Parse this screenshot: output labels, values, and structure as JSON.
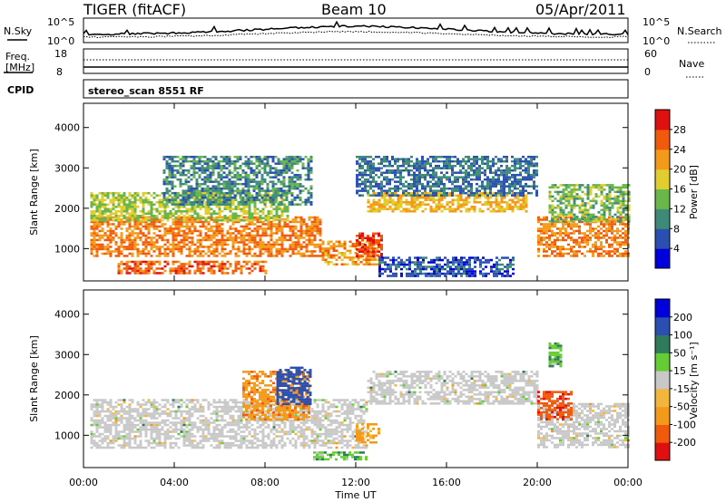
{
  "header": {
    "title": "TIGER (fitACF)",
    "beam": "Beam 10",
    "date": "05/Apr/2011"
  },
  "panels": {
    "nsky_label": "N.Sky",
    "nsky_ticks": [
      "10^5",
      "10^0"
    ],
    "nsearch_label": "N.Search",
    "nsearch_ticks": [
      "10^5",
      "10^0"
    ],
    "freq_label_line1": "Freq.",
    "freq_label_line2": "[MHz]",
    "freq_ticks": [
      "18",
      "8"
    ],
    "nave_label": "Nave",
    "nave_ticks": [
      "60",
      "0"
    ],
    "cpid_label": "CPID",
    "cpid_text": "stereo_scan 8551 RF"
  },
  "chart_data": [
    {
      "type": "heatmap",
      "name": "power",
      "xlabel": "",
      "ylabel": "Slant Range [km]",
      "xlim": [
        "00:00",
        "24:00"
      ],
      "ylim": [
        200,
        4600
      ],
      "y_ticks": [
        1000,
        2000,
        3000,
        4000
      ],
      "colorbar": {
        "label": "Power [dB]",
        "ticks": [
          4,
          8,
          12,
          16,
          20,
          24,
          28
        ],
        "colors": [
          "#0000dd",
          "#2a4fb0",
          "#3e8a78",
          "#69b64a",
          "#e2cd2e",
          "#f39a1a",
          "#f05a0a",
          "#e01010"
        ]
      },
      "regions": [
        {
          "t0": 0.3,
          "t1": 10.5,
          "r0": 800,
          "r1": 1800,
          "level": 24
        },
        {
          "t0": 0.3,
          "t1": 9.0,
          "r0": 1700,
          "r1": 2400,
          "level": 16
        },
        {
          "t0": 3.5,
          "t1": 10.0,
          "r0": 2100,
          "r1": 3300,
          "level": 10
        },
        {
          "t0": 1.5,
          "t1": 8.0,
          "r0": 400,
          "r1": 700,
          "level": 26
        },
        {
          "t0": 10.5,
          "t1": 13.0,
          "r0": 600,
          "r1": 1200,
          "level": 22
        },
        {
          "t0": 12.0,
          "t1": 13.2,
          "r0": 800,
          "r1": 1400,
          "level": 28
        },
        {
          "t0": 12.5,
          "t1": 19.5,
          "r0": 1900,
          "r1": 2400,
          "level": 20
        },
        {
          "t0": 12.0,
          "t1": 20.0,
          "r0": 2300,
          "r1": 3300,
          "level": 8
        },
        {
          "t0": 13.0,
          "t1": 19.0,
          "r0": 300,
          "r1": 800,
          "level": 6
        },
        {
          "t0": 20.0,
          "t1": 24.0,
          "r0": 800,
          "r1": 1800,
          "level": 24
        },
        {
          "t0": 20.5,
          "t1": 24.0,
          "r0": 1700,
          "r1": 2600,
          "level": 14
        }
      ]
    },
    {
      "type": "heatmap",
      "name": "velocity",
      "xlabel": "Time UT",
      "ylabel": "Slant Range [km]",
      "x_ticks": [
        "00:00",
        "04:00",
        "08:00",
        "12:00",
        "16:00",
        "20:00",
        "00:00"
      ],
      "xlim": [
        "00:00",
        "24:00"
      ],
      "ylim": [
        200,
        4600
      ],
      "y_ticks": [
        1000,
        2000,
        3000,
        4000
      ],
      "colorbar": {
        "label": "Velocity [m s⁻¹]",
        "ticks": [
          -200,
          -100,
          -50,
          -15,
          15,
          50,
          100,
          200
        ],
        "colors": [
          "#e01010",
          "#f05a0a",
          "#f39a1a",
          "#f2b63c",
          "#c8c8c8",
          "#66cc33",
          "#2e7a5a",
          "#2a4fb0",
          "#0000dd"
        ]
      },
      "regions": [
        {
          "t0": 0.3,
          "t1": 12.5,
          "r0": 700,
          "r1": 1900,
          "level": 0
        },
        {
          "t0": 12.5,
          "t1": 20.0,
          "r0": 1800,
          "r1": 2600,
          "level": 0
        },
        {
          "t0": 20.0,
          "t1": 24.0,
          "r0": 700,
          "r1": 1800,
          "level": 0
        },
        {
          "t0": 7.0,
          "t1": 10.0,
          "r0": 1400,
          "r1": 2600,
          "level": -80
        },
        {
          "t0": 8.5,
          "t1": 10.0,
          "r0": 1800,
          "r1": 2700,
          "level": 150
        },
        {
          "t0": 10.0,
          "t1": 12.5,
          "r0": 400,
          "r1": 600,
          "level": 40
        },
        {
          "t0": 20.0,
          "t1": 21.5,
          "r0": 1400,
          "r1": 2100,
          "level": -180
        },
        {
          "t0": 20.5,
          "t1": 21.0,
          "r0": 2700,
          "r1": 3300,
          "level": 40
        },
        {
          "t0": 12.0,
          "t1": 13.0,
          "r0": 800,
          "r1": 1300,
          "level": -60
        }
      ]
    }
  ]
}
